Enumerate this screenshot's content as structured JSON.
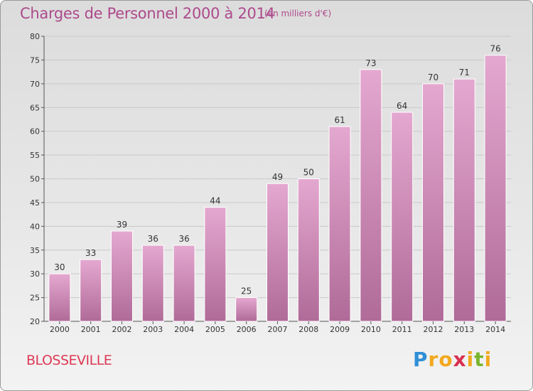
{
  "chart_data": {
    "type": "bar",
    "title": "Charges de Personnel 2000 à 2014",
    "subtitle": "(en milliers d'€)",
    "categories": [
      "2000",
      "2001",
      "2002",
      "2003",
      "2004",
      "2005",
      "2006",
      "2007",
      "2008",
      "2009",
      "2010",
      "2011",
      "2012",
      "2013",
      "2014"
    ],
    "values": [
      30,
      33,
      39,
      36,
      36,
      44,
      25,
      49,
      50,
      61,
      73,
      64,
      70,
      71,
      76
    ],
    "ylim": [
      20,
      80
    ],
    "yticks": [
      20,
      25,
      30,
      35,
      40,
      45,
      50,
      55,
      60,
      65,
      70,
      75,
      80
    ],
    "grid": "horizontal",
    "bar_color": "#c873a8"
  },
  "commune": "BLOSSEVILLE",
  "logo": {
    "letters": [
      "P",
      "r",
      "o",
      "x",
      "i",
      "t",
      "i"
    ],
    "colors": [
      "#2f8fd6",
      "#f2a91f",
      "#f2a91f",
      "#d9304f",
      "#f2a91f",
      "#7ab52e",
      "#f2a91f"
    ]
  }
}
